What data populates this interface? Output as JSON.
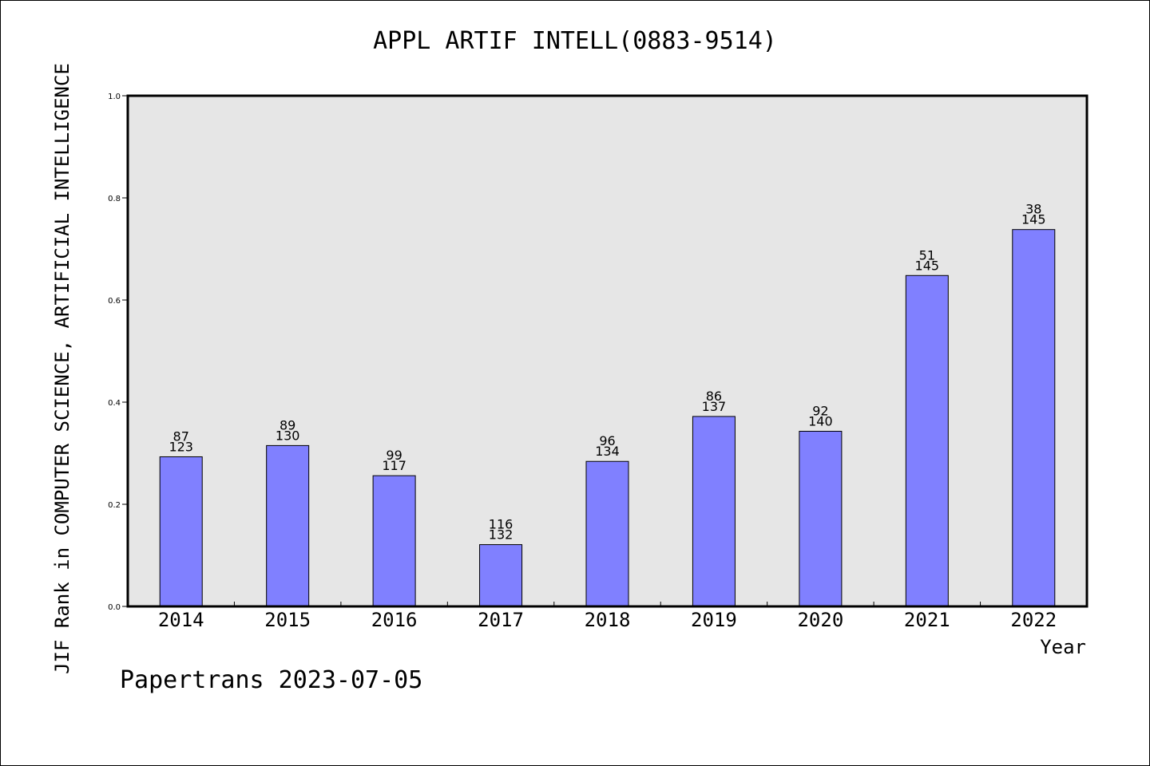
{
  "chart_data": {
    "type": "bar",
    "title": "APPL ARTIF INTELL(0883-9514)",
    "xlabel": "Year",
    "ylabel": "JIF Rank in COMPUTER SCIENCE, ARTIFICIAL INTELLIGENCE",
    "ylim": [
      0,
      1.0
    ],
    "yticks": [
      "0.0",
      "0.2",
      "0.4",
      "0.6",
      "0.8",
      "1.0"
    ],
    "categories": [
      "2014",
      "2015",
      "2016",
      "2017",
      "2018",
      "2019",
      "2020",
      "2021",
      "2022"
    ],
    "values": [
      0.293,
      0.315,
      0.256,
      0.121,
      0.284,
      0.372,
      0.343,
      0.648,
      0.738
    ],
    "rank": [
      "87",
      "89",
      "99",
      "116",
      "96",
      "86",
      "92",
      "51",
      "38"
    ],
    "total": [
      "123",
      "130",
      "117",
      "132",
      "134",
      "137",
      "140",
      "145",
      "145"
    ],
    "grid": false,
    "bar_color": "#8080ff",
    "plot_background": "#e6e6e6"
  },
  "footer": "Papertrans 2023-07-05"
}
